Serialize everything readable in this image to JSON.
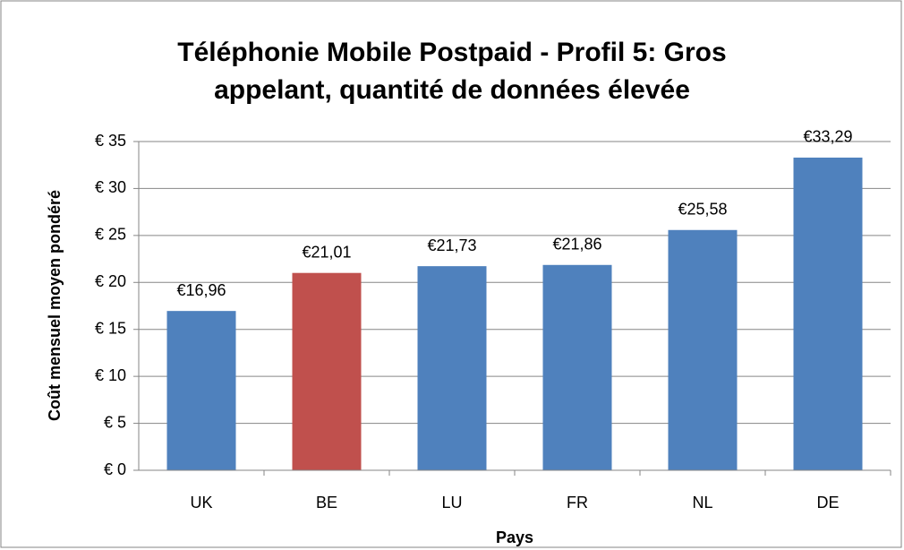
{
  "chart_data": {
    "type": "bar",
    "title": "Téléphonie Mobile Postpaid - Profil 5: Gros appelant, quantité de données élevée",
    "x_label": "Pays",
    "y_label": "Coût mensuel moyen pondéré",
    "categories": [
      "UK",
      "BE",
      "LU",
      "FR",
      "NL",
      "DE"
    ],
    "values": [
      16.96,
      21.01,
      21.73,
      21.86,
      25.58,
      33.29
    ],
    "value_labels": [
      "€16,96",
      "€21,01",
      "€21,73",
      "€21,86",
      "€25,58",
      "€33,29"
    ],
    "colors": [
      "#4f81bd",
      "#c0504d",
      "#4f81bd",
      "#4f81bd",
      "#4f81bd",
      "#4f81bd"
    ],
    "ylim": [
      0,
      35
    ],
    "yticks": [
      {
        "value": 0,
        "label": "€ 0"
      },
      {
        "value": 5,
        "label": "€ 5"
      },
      {
        "value": 10,
        "label": "€ 10"
      },
      {
        "value": 15,
        "label": "€ 15"
      },
      {
        "value": 20,
        "label": "€ 20"
      },
      {
        "value": 25,
        "label": "€ 25"
      },
      {
        "value": 30,
        "label": "€ 30"
      },
      {
        "value": 35,
        "label": "€ 35"
      }
    ],
    "grid": true
  }
}
